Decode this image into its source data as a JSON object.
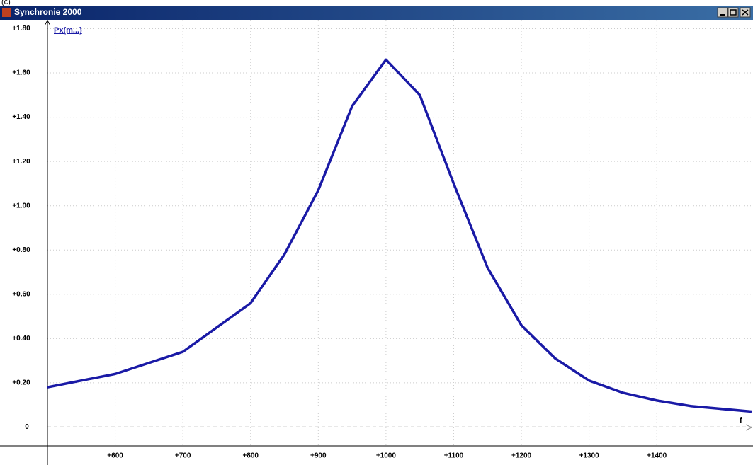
{
  "figure_label": "(c)",
  "window": {
    "title": "Synchronie 2000"
  },
  "chart_data": {
    "type": "line",
    "y_label": "Px(m...)",
    "x_label": "f",
    "x": [
      500,
      600,
      700,
      800,
      850,
      900,
      950,
      1000,
      1050,
      1100,
      1150,
      1200,
      1250,
      1300,
      1350,
      1400,
      1450,
      1540
    ],
    "series": [
      {
        "name": "Px(m...)",
        "color": "#1a1aa6",
        "values": [
          0.18,
          0.24,
          0.34,
          0.56,
          0.78,
          1.07,
          1.45,
          1.66,
          1.5,
          1.1,
          0.72,
          0.46,
          0.31,
          0.21,
          0.155,
          0.12,
          0.095,
          0.07
        ]
      }
    ],
    "xlim": [
      500,
      1540
    ],
    "ylim": [
      -0.085,
      1.84
    ],
    "xticks": [
      {
        "value": 600,
        "label": "+600"
      },
      {
        "value": 700,
        "label": "+700"
      },
      {
        "value": 800,
        "label": "+800"
      },
      {
        "value": 900,
        "label": "+900"
      },
      {
        "value": 1000,
        "label": "+1000"
      },
      {
        "value": 1100,
        "label": "+1100"
      },
      {
        "value": 1200,
        "label": "+1200"
      },
      {
        "value": 1300,
        "label": "+1300"
      },
      {
        "value": 1400,
        "label": "+1400"
      }
    ],
    "yticks": [
      0,
      {
        "value": 0.2,
        "label": "+0.20"
      },
      {
        "value": 0.4,
        "label": "+0.40"
      },
      {
        "value": 0.6,
        "label": "+0.60"
      },
      {
        "value": 0.8,
        "label": "+0.80"
      },
      {
        "value": 1.0,
        "label": "+1.00"
      },
      {
        "value": 1.2,
        "label": "+1.20"
      },
      {
        "value": 1.4,
        "label": "+1.40"
      },
      {
        "value": 1.6,
        "label": "+1.60"
      },
      {
        "value": 1.8,
        "label": "+1.80"
      }
    ],
    "grid": true
  }
}
